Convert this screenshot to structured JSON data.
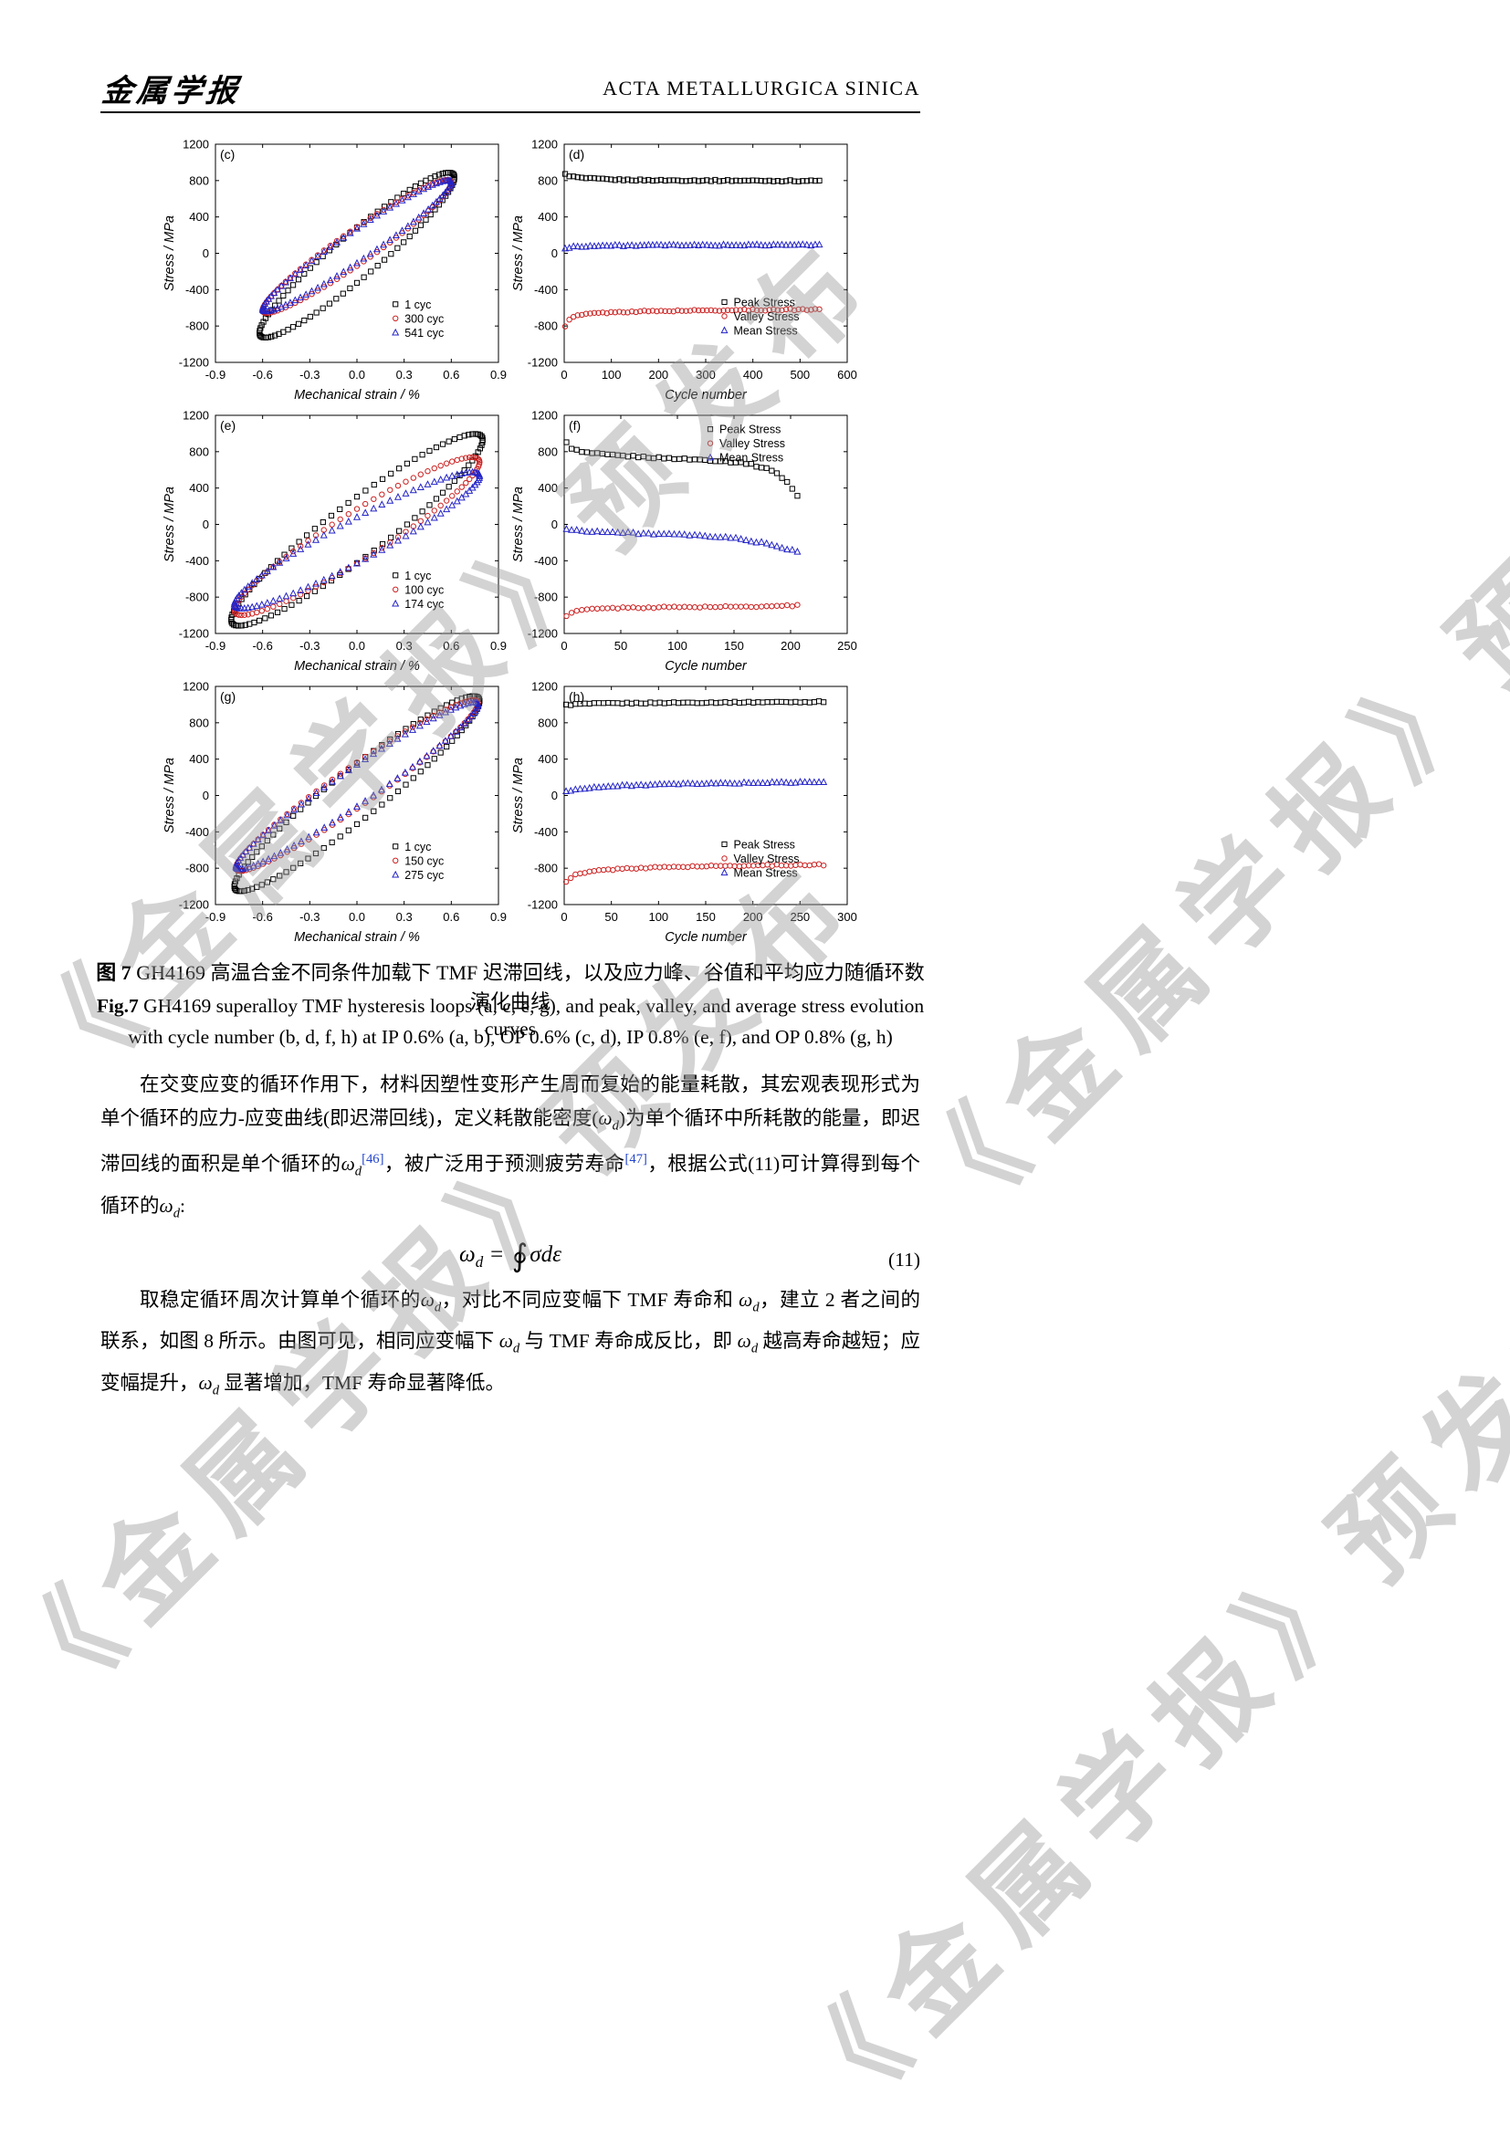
{
  "header": {
    "logo": "金属学报",
    "journal": "ACTA METALLURGICA SINICA"
  },
  "watermark": {
    "text": "《金属学报》预发布"
  },
  "figure": {
    "caption_cn": [
      [
        "b",
        "图 7"
      ],
      [
        "t",
        " GH4169 高温合金不同条件加载下 TMF 迟滞回线，以及应力峰、谷值和平均应力随循环数演化曲线"
      ]
    ],
    "caption_en_line1": [
      [
        "b",
        "Fig.7"
      ],
      [
        "t",
        " GH4169 superalloy TMF hysteresis loops (a, c, e, g), and peak, valley, and average stress evolution curves"
      ]
    ],
    "caption_en_line2": [
      [
        "t",
        "with cycle number (b, d, f, h) at IP 0.6% (a, b), OP 0.6% (c, d), IP 0.8% (e, f), and OP 0.8% (g, h)"
      ]
    ]
  },
  "chart_data": [
    {
      "id": "c",
      "type": "scatter",
      "subtype": "hysteresis-loop",
      "panel_label": "(c)",
      "xlabel": "Mechanical strain / %",
      "ylabel": "Stress / MPa",
      "xlim": [
        -0.9,
        0.9
      ],
      "xticks": [
        -0.9,
        -0.6,
        -0.3,
        0,
        0.3,
        0.6,
        0.9
      ],
      "xtick_labels": [
        "-0.9",
        "-0.6",
        "-0.3",
        "0.0",
        "0.3",
        "0.6",
        "0.9"
      ],
      "ylim": [
        -1200,
        1200
      ],
      "yticks": [
        -1200,
        -800,
        -400,
        0,
        400,
        800,
        1200
      ],
      "grid": false,
      "legend": {
        "fx": 0.62,
        "fy": 0.7
      },
      "series": [
        {
          "name": "1 cyc",
          "marker": "square",
          "color": "#000000",
          "loop": {
            "A": 0.62,
            "B": 855,
            "C": 305,
            "y0": -20,
            "n": 88
          }
        },
        {
          "name": "300 cyc",
          "marker": "circle",
          "color": "#cc2222",
          "loop": {
            "A": 0.6,
            "B": 700,
            "C": 215,
            "y0": 75,
            "n": 88
          }
        },
        {
          "name": "541 cyc",
          "marker": "triangle",
          "color": "#2424c8",
          "loop": {
            "A": 0.6,
            "B": 695,
            "C": 190,
            "y0": 82,
            "n": 88
          }
        }
      ]
    },
    {
      "id": "d",
      "type": "scatter",
      "subtype": "stress-evolution",
      "panel_label": "(d)",
      "xlabel": "Cycle number",
      "ylabel": "Stress / MPa",
      "xlim": [
        0,
        600
      ],
      "xticks": [
        0,
        100,
        200,
        300,
        400,
        500,
        600
      ],
      "ylim": [
        -1200,
        1200
      ],
      "yticks": [
        -1200,
        -800,
        -400,
        0,
        400,
        800,
        1200
      ],
      "grid": false,
      "legend": {
        "fx": 0.55,
        "fy": 0.69
      },
      "series": [
        {
          "name": "Peak Stress",
          "marker": "square",
          "color": "#000000",
          "n": 62,
          "jitter": 8,
          "trend": [
            [
              2,
              868
            ],
            [
              15,
              845
            ],
            [
              40,
              826
            ],
            [
              100,
              810
            ],
            [
              200,
              803
            ],
            [
              350,
              800
            ],
            [
              541,
              796
            ]
          ]
        },
        {
          "name": "Valley Stress",
          "marker": "circle",
          "color": "#cc2222",
          "n": 62,
          "jitter": 8,
          "trend": [
            [
              2,
              -798
            ],
            [
              10,
              -732
            ],
            [
              25,
              -688
            ],
            [
              60,
              -660
            ],
            [
              150,
              -640
            ],
            [
              300,
              -628
            ],
            [
              541,
              -617
            ]
          ]
        },
        {
          "name": "Mean Stress",
          "marker": "triangle",
          "color": "#2424c8",
          "n": 62,
          "jitter": 7,
          "trend": [
            [
              2,
              52
            ],
            [
              20,
              74
            ],
            [
              80,
              84
            ],
            [
              200,
              88
            ],
            [
              541,
              93
            ]
          ]
        }
      ]
    },
    {
      "id": "e",
      "type": "scatter",
      "subtype": "hysteresis-loop",
      "panel_label": "(e)",
      "xlabel": "Mechanical strain / %",
      "ylabel": "Stress / MPa",
      "xlim": [
        -0.9,
        0.9
      ],
      "xticks": [
        -0.9,
        -0.6,
        -0.3,
        0,
        0.3,
        0.6,
        0.9
      ],
      "xtick_labels": [
        "-0.9",
        "-0.6",
        "-0.3",
        "0.0",
        "0.3",
        "0.6",
        "0.9"
      ],
      "ylim": [
        -1200,
        1200
      ],
      "yticks": [
        -1200,
        -800,
        -400,
        0,
        400,
        800,
        1200
      ],
      "grid": false,
      "legend": {
        "fx": 0.62,
        "fy": 0.7
      },
      "series": [
        {
          "name": "1 cyc",
          "marker": "square",
          "color": "#000000",
          "loop": {
            "A": 0.8,
            "B": 990,
            "C": 365,
            "y0": -60,
            "n": 92
          }
        },
        {
          "name": "100 cyc",
          "marker": "circle",
          "color": "#cc2222",
          "loop": {
            "A": 0.78,
            "B": 815,
            "C": 300,
            "y0": -130,
            "n": 92
          }
        },
        {
          "name": "174 cyc",
          "marker": "triangle",
          "color": "#2424c8",
          "loop": {
            "A": 0.78,
            "B": 705,
            "C": 255,
            "y0": -175,
            "n": 92
          }
        }
      ]
    },
    {
      "id": "f",
      "type": "scatter",
      "subtype": "stress-evolution",
      "panel_label": "(f)",
      "xlabel": "Cycle number",
      "ylabel": "Stress / MPa",
      "xlim": [
        0,
        250
      ],
      "xticks": [
        0,
        50,
        100,
        150,
        200,
        250
      ],
      "ylim": [
        -1200,
        1200
      ],
      "yticks": [
        -1200,
        -800,
        -400,
        0,
        400,
        800,
        1200
      ],
      "grid": false,
      "legend": {
        "fx": 0.5,
        "fy": 0.03
      },
      "series": [
        {
          "name": "Peak Stress",
          "marker": "square",
          "color": "#000000",
          "n": 46,
          "jitter": 9,
          "trend": [
            [
              2,
              898
            ],
            [
              6,
              842
            ],
            [
              15,
              795
            ],
            [
              40,
              762
            ],
            [
              80,
              734
            ],
            [
              130,
              706
            ],
            [
              160,
              675
            ],
            [
              185,
              592
            ],
            [
              198,
              455
            ],
            [
              206,
              310
            ]
          ]
        },
        {
          "name": "Valley Stress",
          "marker": "circle",
          "color": "#cc2222",
          "n": 46,
          "jitter": 8,
          "trend": [
            [
              2,
              -1002
            ],
            [
              8,
              -962
            ],
            [
              20,
              -935
            ],
            [
              50,
              -918
            ],
            [
              100,
              -910
            ],
            [
              160,
              -905
            ],
            [
              206,
              -893
            ]
          ]
        },
        {
          "name": "Mean Stress",
          "marker": "triangle",
          "color": "#2424c8",
          "n": 46,
          "jitter": 8,
          "trend": [
            [
              2,
              -52
            ],
            [
              15,
              -70
            ],
            [
              60,
              -95
            ],
            [
              110,
              -118
            ],
            [
              150,
              -150
            ],
            [
              180,
              -212
            ],
            [
              198,
              -275
            ],
            [
              206,
              -302
            ]
          ]
        }
      ]
    },
    {
      "id": "g",
      "type": "scatter",
      "subtype": "hysteresis-loop",
      "panel_label": "(g)",
      "xlabel": "Mechanical strain / %",
      "ylabel": "Stress / MPa",
      "xlim": [
        -0.9,
        0.9
      ],
      "xticks": [
        -0.9,
        -0.6,
        -0.3,
        0,
        0.3,
        0.6,
        0.9
      ],
      "xtick_labels": [
        "-0.9",
        "-0.6",
        "-0.3",
        "0.0",
        "0.3",
        "0.6",
        "0.9"
      ],
      "ylim": [
        -1200,
        1200
      ],
      "yticks": [
        -1200,
        -800,
        -400,
        0,
        400,
        800,
        1200
      ],
      "grid": false,
      "legend": {
        "fx": 0.62,
        "fy": 0.7
      },
      "series": [
        {
          "name": "1 cyc",
          "marker": "square",
          "color": "#000000",
          "loop": {
            "A": 0.78,
            "B": 1020,
            "C": 335,
            "y0": 20,
            "n": 92
          }
        },
        {
          "name": "150 cyc",
          "marker": "circle",
          "color": "#cc2222",
          "loop": {
            "A": 0.77,
            "B": 905,
            "C": 255,
            "y0": 110,
            "n": 92
          }
        },
        {
          "name": "275 cyc",
          "marker": "triangle",
          "color": "#2424c8",
          "loop": {
            "A": 0.77,
            "B": 890,
            "C": 230,
            "y0": 108,
            "n": 92
          }
        }
      ]
    },
    {
      "id": "h",
      "type": "scatter",
      "subtype": "stress-evolution",
      "panel_label": "(h)",
      "xlabel": "Cycle number",
      "ylabel": "Stress / MPa",
      "xlim": [
        0,
        300
      ],
      "xticks": [
        0,
        50,
        100,
        150,
        200,
        250,
        300
      ],
      "ylim": [
        -1200,
        1200
      ],
      "yticks": [
        -1200,
        -800,
        -400,
        0,
        400,
        800,
        1200
      ],
      "grid": false,
      "legend": {
        "fx": 0.55,
        "fy": 0.69
      },
      "series": [
        {
          "name": "Peak Stress",
          "marker": "square",
          "color": "#000000",
          "n": 56,
          "jitter": 7,
          "trend": [
            [
              2,
              996
            ],
            [
              20,
              1008
            ],
            [
              60,
              1015
            ],
            [
              120,
              1021
            ],
            [
              200,
              1026
            ],
            [
              275,
              1031
            ]
          ]
        },
        {
          "name": "Valley Stress",
          "marker": "circle",
          "color": "#cc2222",
          "n": 56,
          "jitter": 8,
          "trend": [
            [
              2,
              -943
            ],
            [
              12,
              -872
            ],
            [
              35,
              -826
            ],
            [
              70,
              -800
            ],
            [
              130,
              -782
            ],
            [
              200,
              -770
            ],
            [
              275,
              -762
            ]
          ]
        },
        {
          "name": "Mean Stress",
          "marker": "triangle",
          "color": "#2424c8",
          "n": 56,
          "jitter": 7,
          "trend": [
            [
              2,
              46
            ],
            [
              25,
              86
            ],
            [
              70,
              112
            ],
            [
              130,
              128
            ],
            [
              200,
              140
            ],
            [
              275,
              148
            ]
          ]
        }
      ]
    }
  ],
  "equation": {
    "omega": "ω",
    "sub": "d",
    "rel": " = ",
    "integral": "∮",
    "integrand": "σdε",
    "number": "(11)"
  },
  "paragraphs": [
    {
      "segments": [
        [
          "t",
          "在交变应变的循环作用下，材料因塑性变形产生周而复始的能量耗散，其宏观表现形式为单个循环的应力-应变曲线(即迟滞回线)，定义耗散能密度("
        ],
        [
          "w",
          "ω",
          "d"
        ],
        [
          "t",
          ")为单个循环中所耗散的能量，即迟滞回线的面积是单个循环的"
        ],
        [
          "w",
          "ω",
          "d"
        ],
        [
          "ref",
          "[46]"
        ],
        [
          "t",
          "，被广泛用于预测疲劳寿命"
        ],
        [
          "ref",
          "[47]"
        ],
        [
          "t",
          "，根据公式(11)可计算得到每个循环的"
        ],
        [
          "w",
          "ω",
          "d"
        ],
        [
          "t",
          ":"
        ]
      ]
    },
    {
      "segments": [
        [
          "t",
          "取稳定循环周次计算单个循环的"
        ],
        [
          "w",
          "ω",
          "d"
        ],
        [
          "t",
          "，对比不同应变幅下 TMF 寿命和 "
        ],
        [
          "w",
          "ω",
          "d"
        ],
        [
          "t",
          "，建立 2 者之间的联系，如图 8 所示。由图可见，相同应变幅下 "
        ],
        [
          "w",
          "ω",
          "d"
        ],
        [
          "t",
          " 与 TMF 寿命成反比，即 "
        ],
        [
          "w",
          "ω",
          "d"
        ],
        [
          "t",
          " 越高寿命越短；应变幅提升，"
        ],
        [
          "w",
          "ω",
          "d"
        ],
        [
          "t",
          " 显著增加，TMF 寿命显著降低。"
        ]
      ]
    }
  ],
  "colors": {
    "peak_series": "#000000",
    "valley_series": "#cc2222",
    "mean_series": "#2424c8",
    "reference_link": "#2244cc",
    "watermark_gray": "#969696"
  }
}
